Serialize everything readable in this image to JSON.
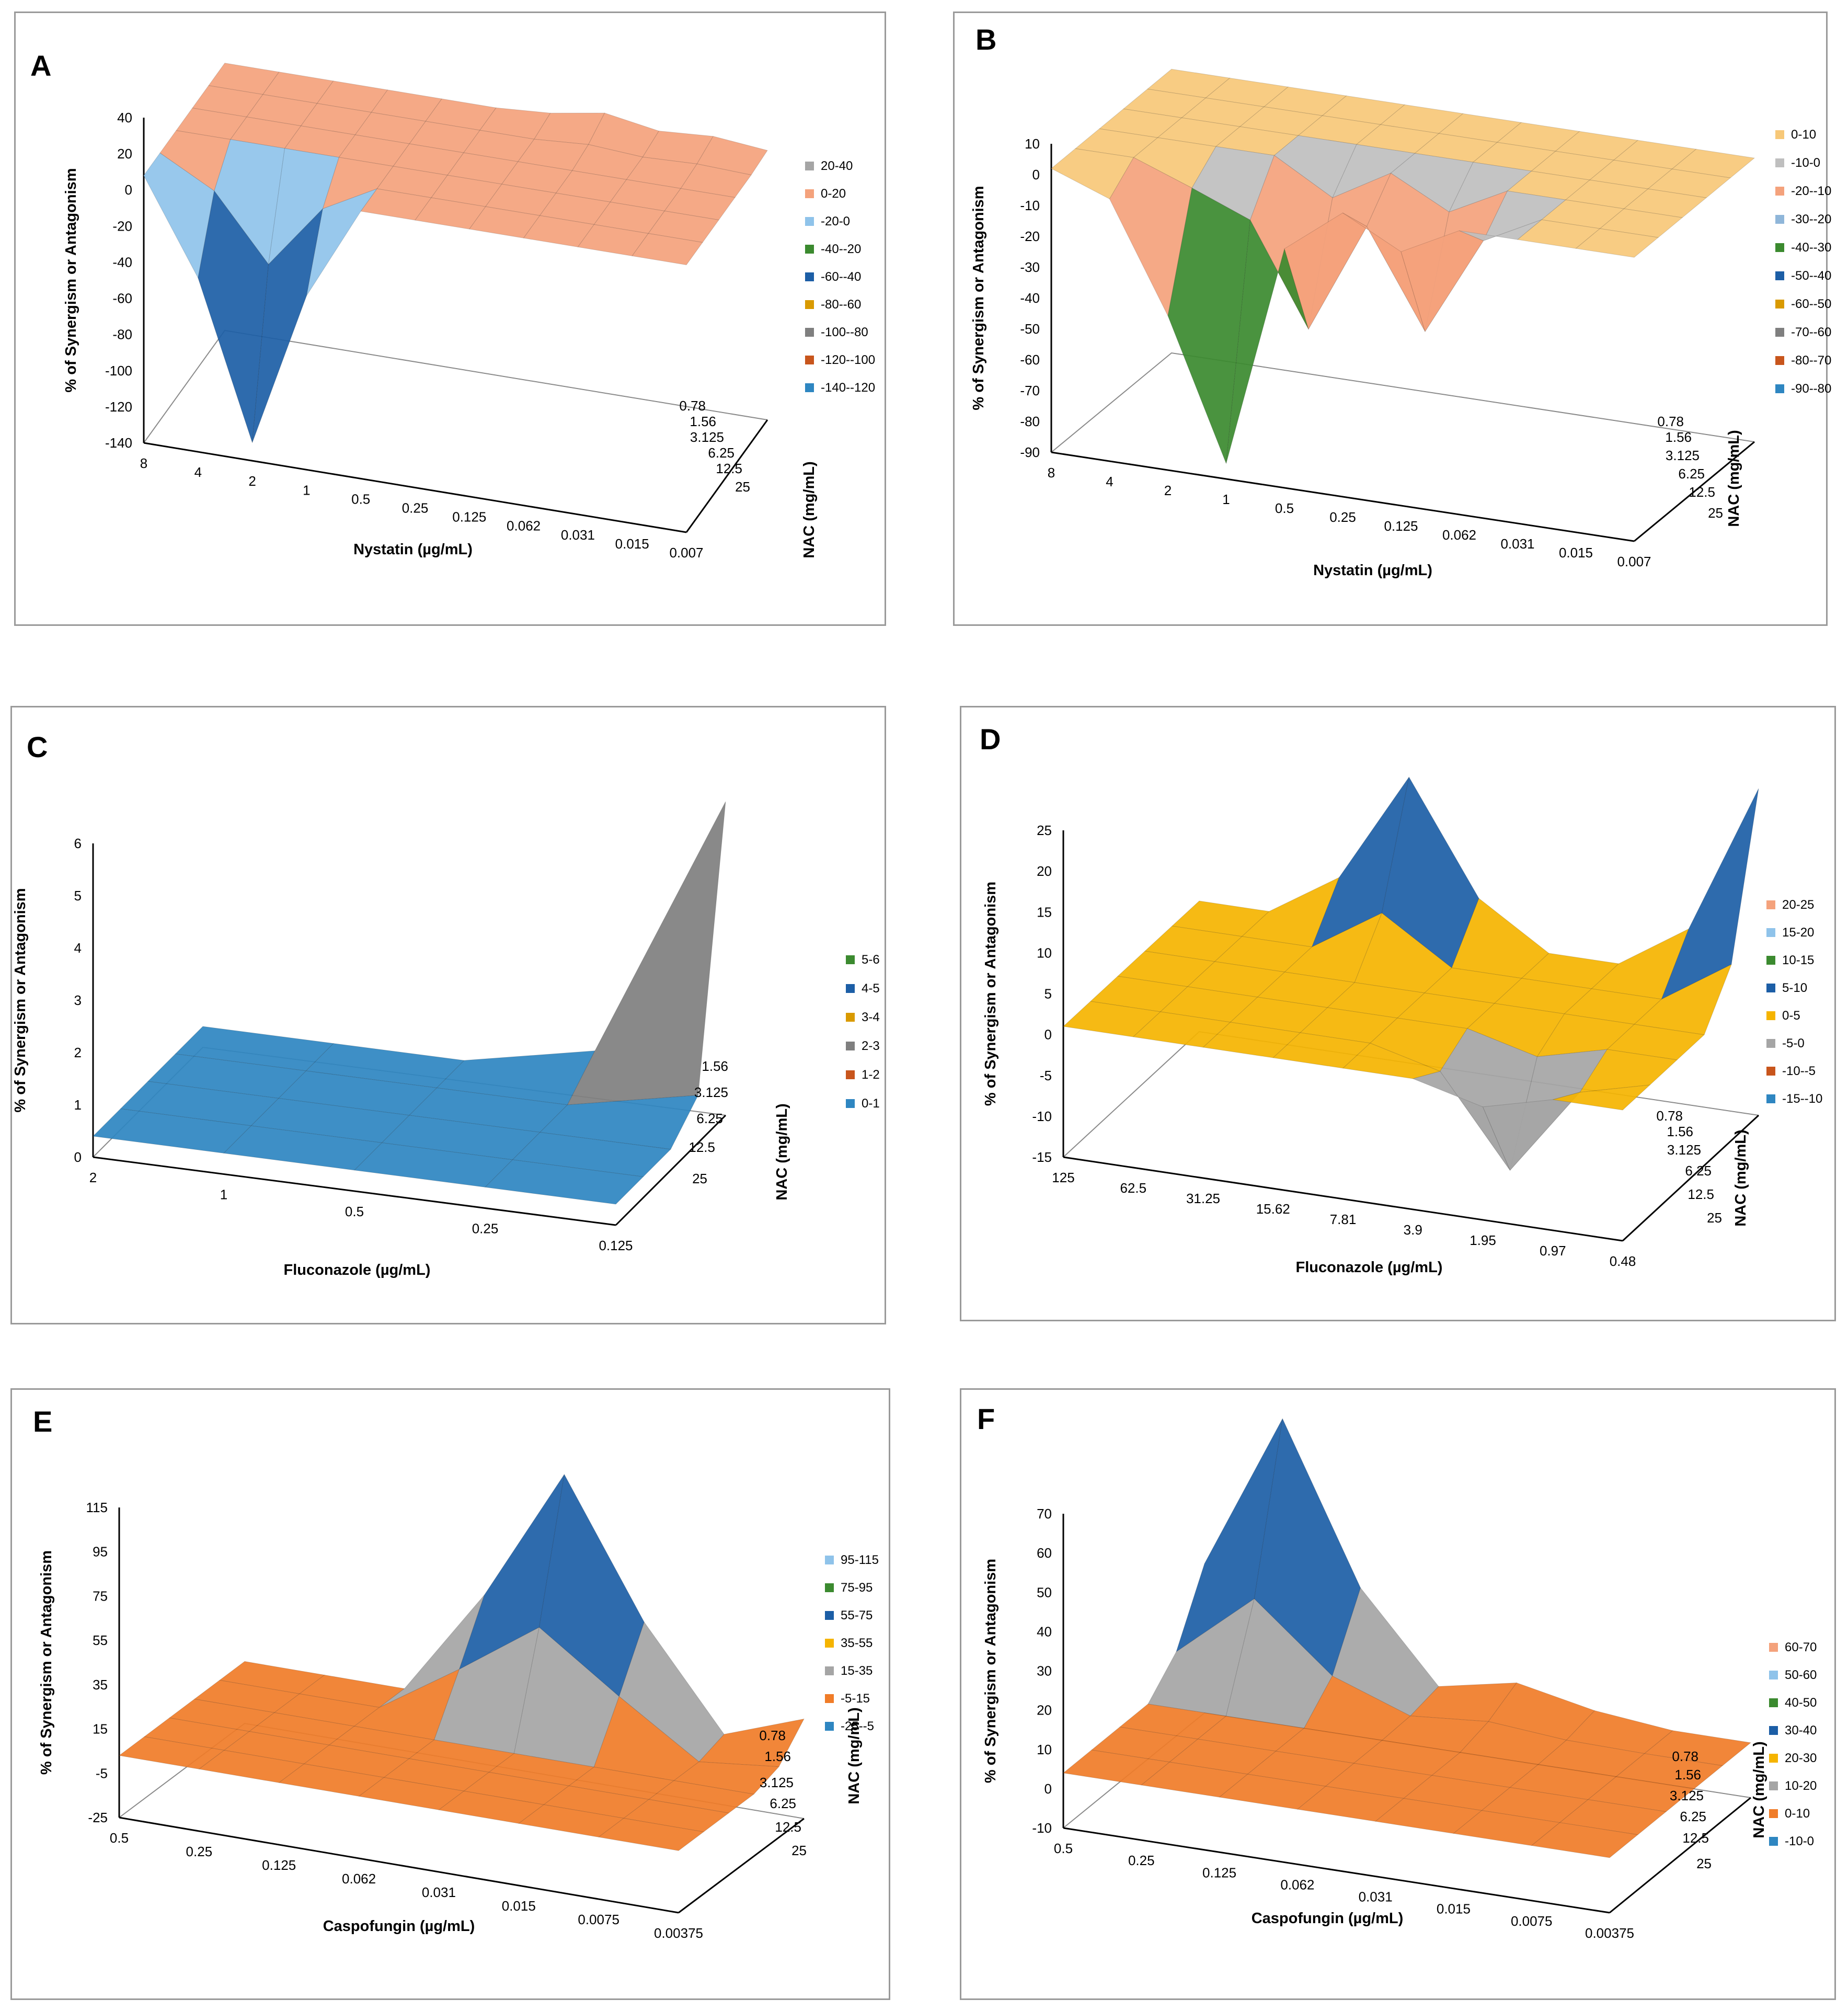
{
  "chart_data": [
    {
      "id": "A",
      "panel_label": "A",
      "type": "surface",
      "zlabel": "% of Synergism or Antagonism",
      "xlabel": "Nystatin (µg/mL)",
      "ylabel": "NAC (mg/mL)",
      "x_ticks": [
        "8",
        "4",
        "2",
        "1",
        "0.5",
        "0.25",
        "0.125",
        "0.062",
        "0.031",
        "0.015",
        "0.007"
      ],
      "y_ticks": [
        "0.78",
        "1.56",
        "3.125",
        "6.25",
        "12.5",
        "25"
      ],
      "z_ticks": [
        "40",
        "20",
        "0",
        "-20",
        "-40",
        "-60",
        "-80",
        "-100",
        "-120",
        "-140"
      ],
      "zlim": [
        -140,
        40
      ],
      "legend": [
        {
          "label": "20-40",
          "color": "#a5a5a5"
        },
        {
          "label": "0-20",
          "color": "#f4a27c"
        },
        {
          "label": "-20-0",
          "color": "#8fc3ea"
        },
        {
          "label": "-40--20",
          "color": "#3b8a2f"
        },
        {
          "label": "-60--40",
          "color": "#1c5ea6"
        },
        {
          "label": "-80--60",
          "color": "#d99a00"
        },
        {
          "label": "-100--80",
          "color": "#7f7f7f"
        },
        {
          "label": "-120--100",
          "color": "#c8551c"
        },
        {
          "label": "-140--120",
          "color": "#2e86c1"
        }
      ],
      "surface_peaks": [
        {
          "x": "2",
          "y": "25",
          "z": -130
        },
        {
          "x": "0.062",
          "y": "0.78",
          "z": 15
        },
        {
          "x": "0.015",
          "y": "0.78",
          "z": 12
        }
      ]
    },
    {
      "id": "B",
      "panel_label": "B",
      "type": "surface",
      "zlabel": "% of Synergism or Antagonism",
      "xlabel": "Nystatin (µg/mL)",
      "ylabel": "NAC (mg/mL)",
      "x_ticks": [
        "8",
        "4",
        "2",
        "1",
        "0.5",
        "0.25",
        "0.125",
        "0.062",
        "0.031",
        "0.015",
        "0.007"
      ],
      "y_ticks": [
        "0.78",
        "1.56",
        "3.125",
        "6.25",
        "12.5",
        "25"
      ],
      "z_ticks": [
        "10",
        "0",
        "-10",
        "-20",
        "-30",
        "-40",
        "-50",
        "-60",
        "-70",
        "-80",
        "-90"
      ],
      "zlim": [
        -90,
        10
      ],
      "legend": [
        {
          "label": "0-10",
          "color": "#f7c878"
        },
        {
          "label": "-10-0",
          "color": "#bfbfbf"
        },
        {
          "label": "-20--10",
          "color": "#f4a27c"
        },
        {
          "label": "-30--20",
          "color": "#8fb6d9"
        },
        {
          "label": "-40--30",
          "color": "#3b8a2f"
        },
        {
          "label": "-50--40",
          "color": "#1c5ea6"
        },
        {
          "label": "-60--50",
          "color": "#d99a00"
        },
        {
          "label": "-70--60",
          "color": "#7f7f7f"
        },
        {
          "label": "-80--70",
          "color": "#c8551c"
        },
        {
          "label": "-90--80",
          "color": "#2e86c1"
        }
      ],
      "surface_peaks": [
        {
          "x": "1",
          "y": "25",
          "z": -85
        },
        {
          "x": "2",
          "y": "25",
          "z": -40
        },
        {
          "x": "0.5",
          "y": "12.5",
          "z": -45
        },
        {
          "x": "0.125",
          "y": "12.5",
          "z": -40
        }
      ]
    },
    {
      "id": "C",
      "panel_label": "C",
      "type": "surface",
      "zlabel": "% of Synergism or Antagonism",
      "xlabel": "Fluconazole (µg/mL)",
      "ylabel": "NAC (mg/mL)",
      "x_ticks": [
        "2",
        "1",
        "0.5",
        "0.25",
        "0.125"
      ],
      "y_ticks": [
        "1.56",
        "3.125",
        "6.25",
        "12.5",
        "25"
      ],
      "z_ticks": [
        "6",
        "5",
        "4",
        "3",
        "2",
        "1",
        "0"
      ],
      "zlim": [
        0,
        6
      ],
      "legend": [
        {
          "label": "5-6",
          "color": "#3b8a2f"
        },
        {
          "label": "4-5",
          "color": "#1c5ea6"
        },
        {
          "label": "3-4",
          "color": "#d99a00"
        },
        {
          "label": "2-3",
          "color": "#7f7f7f"
        },
        {
          "label": "1-2",
          "color": "#c8551c"
        },
        {
          "label": "0-1",
          "color": "#2e86c1"
        }
      ],
      "surface_peaks": [
        {
          "x": "0.125",
          "y": "1.56",
          "z": 6
        }
      ]
    },
    {
      "id": "D",
      "panel_label": "D",
      "type": "surface",
      "zlabel": "% of Synergism or Antagonism",
      "xlabel": "Fluconazole (µg/mL)",
      "ylabel": "NAC (mg/mL)",
      "x_ticks": [
        "125",
        "62.5",
        "31.25",
        "15.62",
        "7.81",
        "3.9",
        "1.95",
        "0.97",
        "0.48"
      ],
      "y_ticks": [
        "0.78",
        "1.56",
        "3.125",
        "6.25",
        "12.5",
        "25"
      ],
      "z_ticks": [
        "25",
        "20",
        "15",
        "10",
        "5",
        "0",
        "-5",
        "-10",
        "-15"
      ],
      "zlim": [
        -15,
        25
      ],
      "legend": [
        {
          "label": "20-25",
          "color": "#f4a27c"
        },
        {
          "label": "15-20",
          "color": "#8fc3ea"
        },
        {
          "label": "10-15",
          "color": "#3b8a2f"
        },
        {
          "label": "5-10",
          "color": "#1c5ea6"
        },
        {
          "label": "0-5",
          "color": "#f5b400"
        },
        {
          "label": "-5-0",
          "color": "#a5a5a5"
        },
        {
          "label": "-10--5",
          "color": "#c8551c"
        },
        {
          "label": "-15--10",
          "color": "#2e86c1"
        }
      ],
      "surface_peaks": [
        {
          "x": "15.62",
          "y": "0.78",
          "z": 20
        },
        {
          "x": "0.48",
          "y": "0.78",
          "z": 25
        },
        {
          "x": "1.95",
          "y": "12.5",
          "z": -12
        }
      ]
    },
    {
      "id": "E",
      "panel_label": "E",
      "type": "surface",
      "zlabel": "% of Synergism or Antagonism",
      "xlabel": "Caspofungin (µg/mL)",
      "ylabel": "NAC (mg/mL)",
      "x_ticks": [
        "0.5",
        "0.25",
        "0.125",
        "0.062",
        "0.031",
        "0.015",
        "0.0075",
        "0.00375"
      ],
      "y_ticks": [
        "0.78",
        "1.56",
        "3.125",
        "6.25",
        "12.5",
        "25"
      ],
      "z_ticks": [
        "115",
        "95",
        "75",
        "55",
        "35",
        "15",
        "-5",
        "-25"
      ],
      "zlim": [
        -25,
        115
      ],
      "legend": [
        {
          "label": "95-115",
          "color": "#8fc3ea"
        },
        {
          "label": "75-95",
          "color": "#3b8a2f"
        },
        {
          "label": "55-75",
          "color": "#1c5ea6"
        },
        {
          "label": "35-55",
          "color": "#f5b400"
        },
        {
          "label": "15-35",
          "color": "#a5a5a5"
        },
        {
          "label": "-5-15",
          "color": "#f07c28"
        },
        {
          "label": "-25--5",
          "color": "#2e86c1"
        }
      ],
      "surface_peaks": [
        {
          "x": "0.031",
          "y": "0.78",
          "z": 112
        },
        {
          "x": "0.00375",
          "y": "0.78",
          "z": 20
        }
      ]
    },
    {
      "id": "F",
      "panel_label": "F",
      "type": "surface",
      "zlabel": "% of Synergism or Antagonism",
      "xlabel": "Caspofungin (µg/mL)",
      "ylabel": "NAC (mg/mL)",
      "x_ticks": [
        "0.5",
        "0.25",
        "0.125",
        "0.062",
        "0.031",
        "0.015",
        "0.0075",
        "0.00375"
      ],
      "y_ticks": [
        "0.78",
        "1.56",
        "3.125",
        "6.25",
        "12.5",
        "25"
      ],
      "z_ticks": [
        "70",
        "60",
        "50",
        "40",
        "30",
        "20",
        "10",
        "0",
        "-10"
      ],
      "zlim": [
        -10,
        70
      ],
      "legend": [
        {
          "label": "60-70",
          "color": "#f4a27c"
        },
        {
          "label": "50-60",
          "color": "#8fc3ea"
        },
        {
          "label": "40-50",
          "color": "#3b8a2f"
        },
        {
          "label": "30-40",
          "color": "#1c5ea6"
        },
        {
          "label": "20-30",
          "color": "#f5b400"
        },
        {
          "label": "10-20",
          "color": "#a5a5a5"
        },
        {
          "label": "0-10",
          "color": "#f07c28"
        },
        {
          "label": "-10-0",
          "color": "#2e86c1"
        }
      ],
      "surface_peaks": [
        {
          "x": "0.25",
          "y": "0.78",
          "z": 68
        },
        {
          "x": "0.031",
          "y": "0.78",
          "z": 10
        }
      ]
    }
  ]
}
